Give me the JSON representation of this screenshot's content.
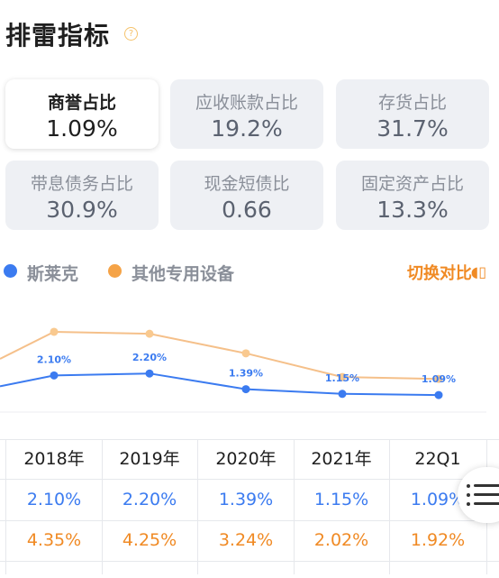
{
  "header": {
    "title": "排雷指标",
    "help_icon": "?"
  },
  "metrics": [
    {
      "label": "商誉占比",
      "value": "1.09%",
      "active": true
    },
    {
      "label": "应收账款占比",
      "value": "19.2%"
    },
    {
      "label": "存货占比",
      "value": "31.7%"
    },
    {
      "label": "带息债务占比",
      "value": "30.9%"
    },
    {
      "label": "现金短债比",
      "value": "0.66"
    },
    {
      "label": "固定资产占比",
      "value": "13.3%"
    }
  ],
  "legend": {
    "series1": "斯莱克",
    "series2": "其他专用设备",
    "switch_label": "切换对比",
    "switch_icon": "◖▯"
  },
  "colors": {
    "series1": "#3b7bf0",
    "series2": "#f5c08a",
    "accent": "#f08a24"
  },
  "chart_data": {
    "type": "line",
    "x": [
      "2018年",
      "2019年",
      "2020年",
      "2021年",
      "22Q1"
    ],
    "series": [
      {
        "name": "斯莱克",
        "values": [
          2.1,
          2.2,
          1.39,
          1.15,
          1.09
        ],
        "labels": [
          "2.10%",
          "2.20%",
          "1.39%",
          "1.15%",
          "1.09%"
        ]
      },
      {
        "name": "其他专用设备",
        "values": [
          4.35,
          4.25,
          3.24,
          2.02,
          1.92
        ]
      }
    ]
  },
  "table": {
    "headers": [
      "2018年",
      "2019年",
      "2020年",
      "2021年",
      "22Q1"
    ],
    "row1": [
      "2.10%",
      "2.20%",
      "1.39%",
      "1.15%",
      "1.09%"
    ],
    "row2": [
      "4.35%",
      "4.25%",
      "3.24%",
      "2.02%",
      "1.92%"
    ]
  }
}
